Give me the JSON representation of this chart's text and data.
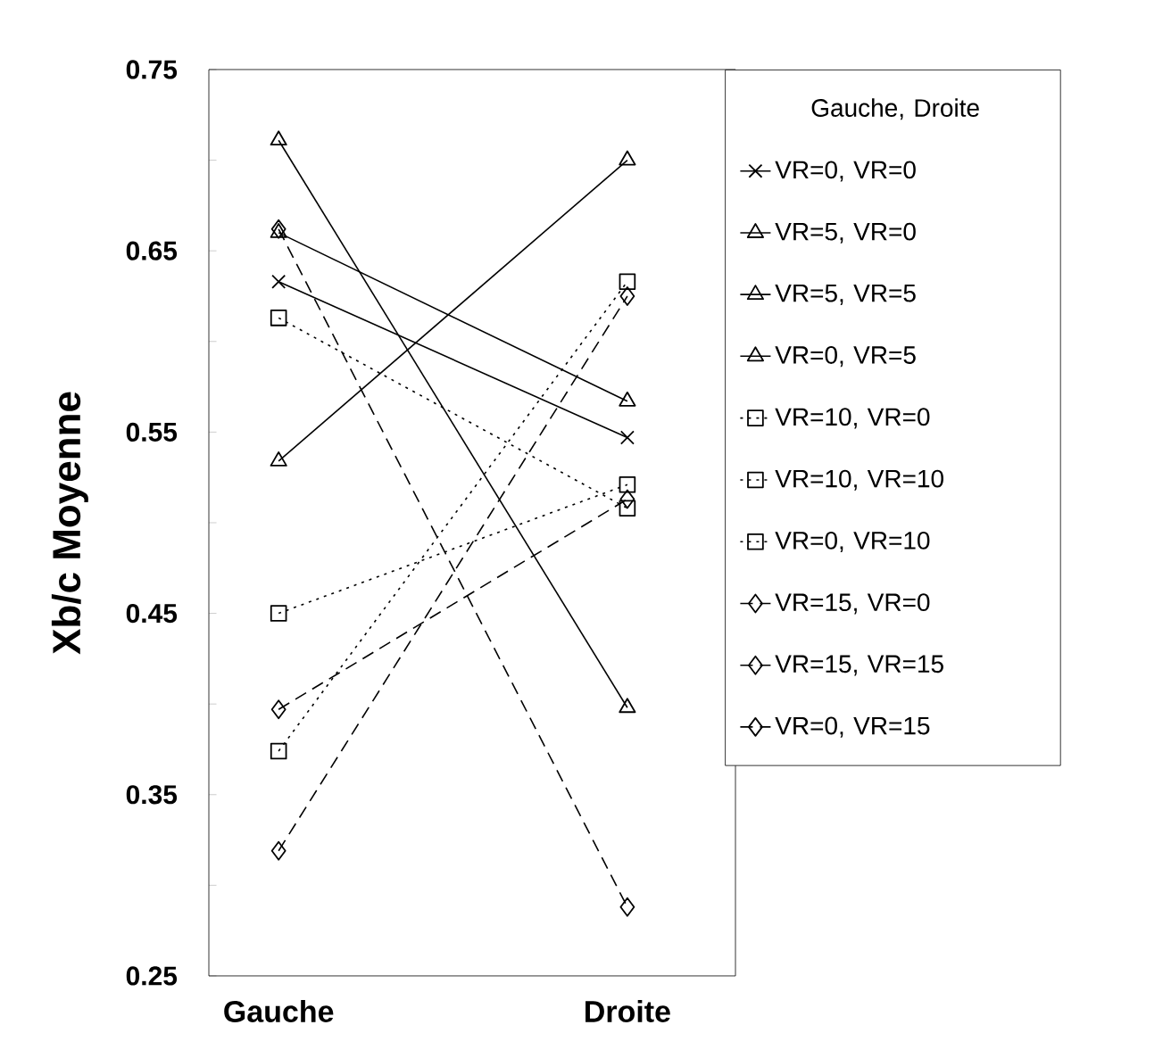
{
  "chart_data": {
    "type": "line",
    "ylabel": "Xb/c Moyenne",
    "legend_title": "Gauche, Droite",
    "categories": [
      "Gauche",
      "Droite"
    ],
    "series": [
      {
        "name": "VR=0,  VR=0",
        "color": "#000000",
        "values": [
          0.633,
          0.547
        ],
        "marker": "cross",
        "line_style": "solid"
      },
      {
        "name": "VR=5,  VR=0",
        "color": "#000000",
        "values": [
          0.66,
          0.567
        ],
        "marker": "triangle",
        "line_style": "solid"
      },
      {
        "name": "VR=5,  VR=5",
        "color": "#000000",
        "values": [
          0.711,
          0.398
        ],
        "marker": "triangle",
        "line_style": "solid"
      },
      {
        "name": "VR=0,  VR=5",
        "color": "#000000",
        "values": [
          0.534,
          0.7
        ],
        "marker": "triangle",
        "line_style": "solid"
      },
      {
        "name": "VR=10,  VR=0",
        "color": "#000000",
        "values": [
          0.613,
          0.508
        ],
        "marker": "square",
        "line_style": "dotted"
      },
      {
        "name": "VR=10,  VR=10",
        "color": "#000000",
        "values": [
          0.45,
          0.521
        ],
        "marker": "square",
        "line_style": "dotted"
      },
      {
        "name": "VR=0,  VR=10",
        "color": "#000000",
        "values": [
          0.374,
          0.633
        ],
        "marker": "square",
        "line_style": "dotted"
      },
      {
        "name": "VR=15,  VR=0",
        "color": "#000000",
        "values": [
          0.662,
          0.288
        ],
        "marker": "diamond",
        "line_style": "dashed"
      },
      {
        "name": "VR=15,  VR=15",
        "color": "#000000",
        "values": [
          0.397,
          0.513
        ],
        "marker": "diamond",
        "line_style": "dashed"
      },
      {
        "name": "VR=0,  VR=15",
        "color": "#000000",
        "values": [
          0.319,
          0.625
        ],
        "marker": "diamond",
        "line_style": "dashed"
      }
    ],
    "ylim": [
      0.25,
      0.75
    ],
    "yticks": [
      0.25,
      {
        "value": 0.3,
        "label": null
      },
      0.35,
      {
        "value": 0.4,
        "label": null
      },
      0.45,
      {
        "value": 0.5,
        "label": null
      },
      0.55,
      {
        "value": 0.6,
        "label": null
      },
      0.65,
      {
        "value": 0.7,
        "label": null
      },
      0.75
    ],
    "grid": false,
    "legend": "right"
  }
}
